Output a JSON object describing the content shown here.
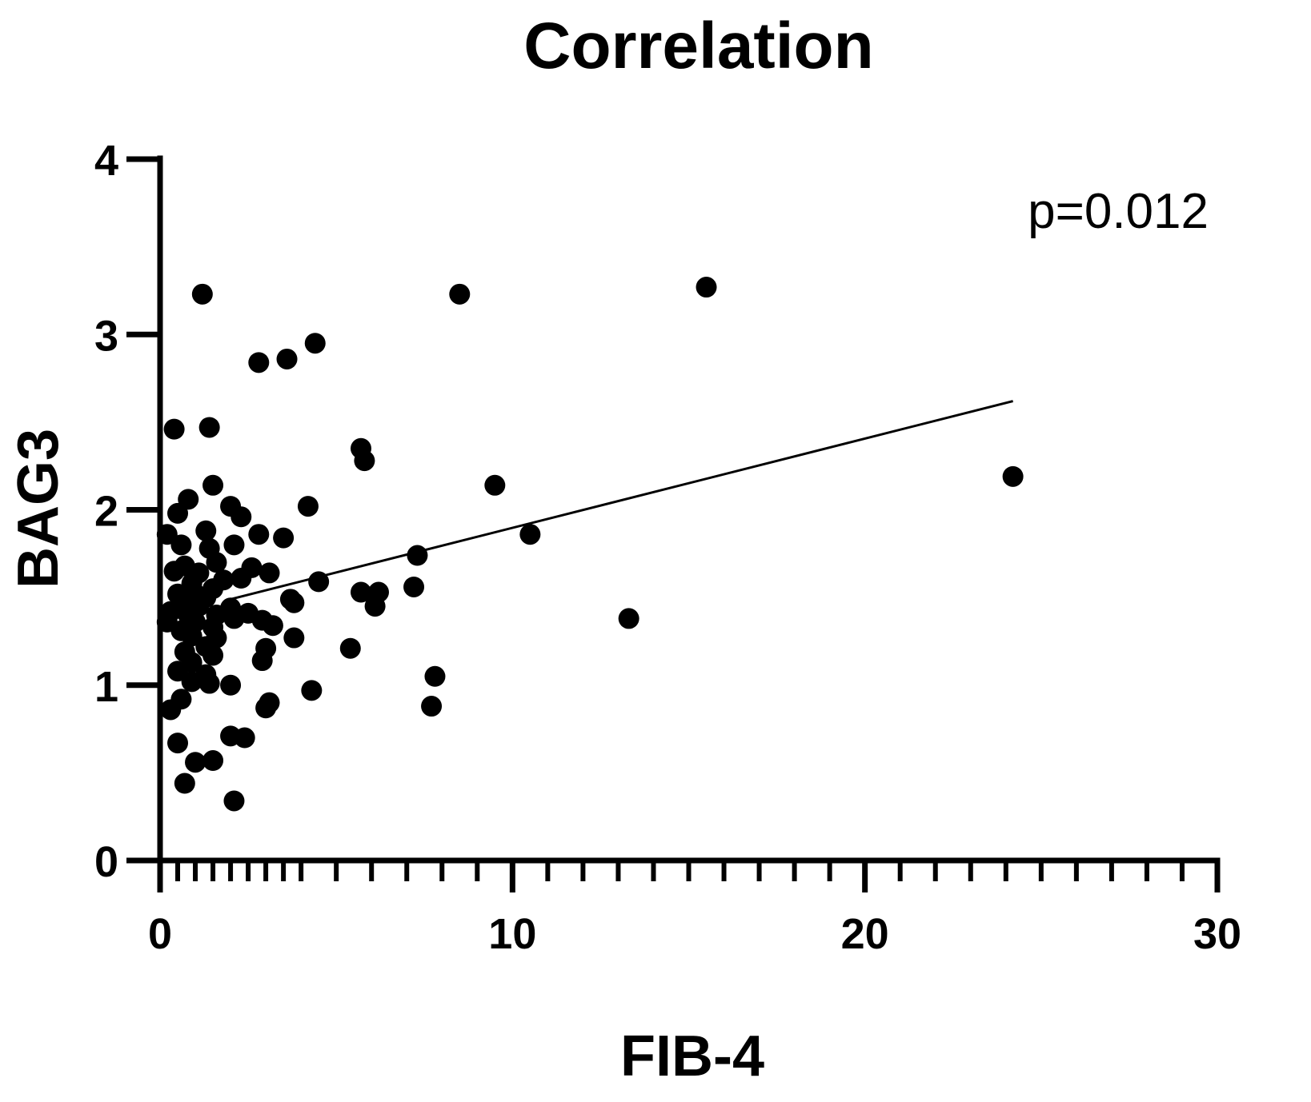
{
  "chart_data": {
    "type": "scatter",
    "title": "Correlation",
    "xlabel": "FIB-4",
    "ylabel": "BAG3",
    "xlim": [
      0,
      30
    ],
    "ylim": [
      0,
      4
    ],
    "x_ticks": [
      "0",
      "10",
      "20",
      "30"
    ],
    "y_ticks": [
      "0",
      "1",
      "2",
      "3",
      "4"
    ],
    "x_major_ticks": [
      0,
      10,
      20,
      30
    ],
    "x_minor_ticks": [
      0.5,
      1,
      1.5,
      2,
      2.5,
      3,
      3.5,
      4,
      5,
      6,
      7,
      8,
      9,
      11,
      12,
      13,
      14,
      15,
      16,
      17,
      18,
      19,
      21,
      22,
      23,
      24,
      25,
      26,
      27,
      28,
      29
    ],
    "y_major_ticks": [
      0,
      1,
      2,
      3,
      4
    ],
    "annotation": "p=0.012",
    "marker_color": "#000000",
    "points": [
      {
        "x": 1.2,
        "y": 3.23
      },
      {
        "x": 8.5,
        "y": 3.23
      },
      {
        "x": 15.5,
        "y": 3.27
      },
      {
        "x": 4.4,
        "y": 2.95
      },
      {
        "x": 2.8,
        "y": 2.84
      },
      {
        "x": 3.6,
        "y": 2.86
      },
      {
        "x": 0.4,
        "y": 2.46
      },
      {
        "x": 1.4,
        "y": 2.47
      },
      {
        "x": 5.7,
        "y": 2.35
      },
      {
        "x": 5.8,
        "y": 2.28
      },
      {
        "x": 9.5,
        "y": 2.14
      },
      {
        "x": 24.2,
        "y": 2.19
      },
      {
        "x": 1.5,
        "y": 2.14
      },
      {
        "x": 0.8,
        "y": 2.06
      },
      {
        "x": 4.2,
        "y": 2.02
      },
      {
        "x": 2.0,
        "y": 2.02
      },
      {
        "x": 2.3,
        "y": 1.96
      },
      {
        "x": 0.5,
        "y": 1.98
      },
      {
        "x": 0.2,
        "y": 1.86
      },
      {
        "x": 1.3,
        "y": 1.88
      },
      {
        "x": 2.8,
        "y": 1.86
      },
      {
        "x": 3.5,
        "y": 1.84
      },
      {
        "x": 10.5,
        "y": 1.86
      },
      {
        "x": 2.1,
        "y": 1.8
      },
      {
        "x": 1.4,
        "y": 1.78
      },
      {
        "x": 0.6,
        "y": 1.8
      },
      {
        "x": 7.3,
        "y": 1.74
      },
      {
        "x": 1.6,
        "y": 1.7
      },
      {
        "x": 0.7,
        "y": 1.68
      },
      {
        "x": 2.6,
        "y": 1.67
      },
      {
        "x": 3.1,
        "y": 1.64
      },
      {
        "x": 1.1,
        "y": 1.64
      },
      {
        "x": 0.4,
        "y": 1.65
      },
      {
        "x": 4.5,
        "y": 1.59
      },
      {
        "x": 1.8,
        "y": 1.6
      },
      {
        "x": 2.3,
        "y": 1.61
      },
      {
        "x": 0.9,
        "y": 1.58
      },
      {
        "x": 1.5,
        "y": 1.55
      },
      {
        "x": 7.2,
        "y": 1.56
      },
      {
        "x": 5.7,
        "y": 1.53
      },
      {
        "x": 6.2,
        "y": 1.53
      },
      {
        "x": 0.5,
        "y": 1.52
      },
      {
        "x": 1.0,
        "y": 1.52
      },
      {
        "x": 1.3,
        "y": 1.5
      },
      {
        "x": 3.7,
        "y": 1.49
      },
      {
        "x": 3.8,
        "y": 1.47
      },
      {
        "x": 6.1,
        "y": 1.45
      },
      {
        "x": 0.6,
        "y": 1.46
      },
      {
        "x": 1.1,
        "y": 1.45
      },
      {
        "x": 2.0,
        "y": 1.44
      },
      {
        "x": 0.3,
        "y": 1.42
      },
      {
        "x": 0.8,
        "y": 1.4
      },
      {
        "x": 1.6,
        "y": 1.4
      },
      {
        "x": 2.5,
        "y": 1.41
      },
      {
        "x": 2.1,
        "y": 1.38
      },
      {
        "x": 13.3,
        "y": 1.38
      },
      {
        "x": 0.2,
        "y": 1.36
      },
      {
        "x": 1.0,
        "y": 1.36
      },
      {
        "x": 2.9,
        "y": 1.37
      },
      {
        "x": 3.2,
        "y": 1.34
      },
      {
        "x": 1.5,
        "y": 1.33
      },
      {
        "x": 0.6,
        "y": 1.31
      },
      {
        "x": 0.9,
        "y": 1.28
      },
      {
        "x": 3.8,
        "y": 1.27
      },
      {
        "x": 1.6,
        "y": 1.27
      },
      {
        "x": 1.3,
        "y": 1.22
      },
      {
        "x": 3.0,
        "y": 1.21
      },
      {
        "x": 5.4,
        "y": 1.21
      },
      {
        "x": 0.7,
        "y": 1.19
      },
      {
        "x": 1.5,
        "y": 1.17
      },
      {
        "x": 2.9,
        "y": 1.14
      },
      {
        "x": 0.9,
        "y": 1.13
      },
      {
        "x": 0.5,
        "y": 1.08
      },
      {
        "x": 1.3,
        "y": 1.06
      },
      {
        "x": 7.8,
        "y": 1.05
      },
      {
        "x": 0.9,
        "y": 1.02
      },
      {
        "x": 1.4,
        "y": 1.01
      },
      {
        "x": 2.0,
        "y": 1.0
      },
      {
        "x": 4.3,
        "y": 0.97
      },
      {
        "x": 0.6,
        "y": 0.92
      },
      {
        "x": 3.1,
        "y": 0.9
      },
      {
        "x": 3.0,
        "y": 0.87
      },
      {
        "x": 7.7,
        "y": 0.88
      },
      {
        "x": 0.3,
        "y": 0.86
      },
      {
        "x": 2.0,
        "y": 0.71
      },
      {
        "x": 2.4,
        "y": 0.7
      },
      {
        "x": 0.5,
        "y": 0.67
      },
      {
        "x": 1.0,
        "y": 0.56
      },
      {
        "x": 1.5,
        "y": 0.57
      },
      {
        "x": 0.7,
        "y": 0.44
      },
      {
        "x": 2.1,
        "y": 0.34
      }
    ],
    "fit_line": {
      "x": [
        2.0,
        24.2
      ],
      "y": [
        1.49,
        2.62
      ]
    }
  }
}
